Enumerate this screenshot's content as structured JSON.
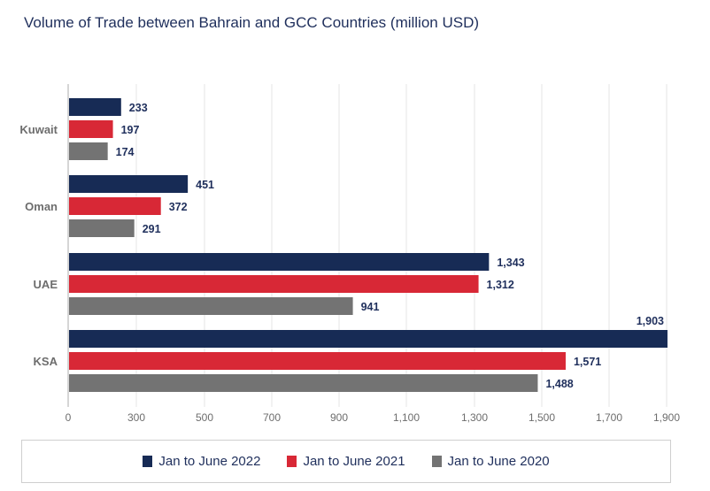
{
  "chart_data": {
    "type": "bar",
    "orientation": "horizontal",
    "title": "Volume of Trade between Bahrain and GCC Countries (million USD)",
    "categories": [
      "Kuwait",
      "Oman",
      "UAE",
      "KSA"
    ],
    "series": [
      {
        "name": "Jan to June 2022",
        "color": "#172b55",
        "values": [
          233,
          451,
          1343,
          1903
        ],
        "labels": [
          "233",
          "451",
          "1,343",
          "1,903"
        ]
      },
      {
        "name": "Jan to June 2021",
        "color": "#d82836",
        "values": [
          197,
          372,
          1312,
          1571
        ],
        "labels": [
          "197",
          "372",
          "1,312",
          "1,571"
        ]
      },
      {
        "name": "Jan to June 2020",
        "color": "#737373",
        "values": [
          174,
          291,
          941,
          1488
        ],
        "labels": [
          "174",
          "291",
          "941",
          "1,488"
        ]
      }
    ],
    "x_ticks": [
      0,
      300,
      500,
      700,
      900,
      1100,
      1300,
      1500,
      1700,
      1900
    ],
    "x_tick_labels": [
      "0",
      "300",
      "500",
      "700",
      "900",
      "1,100",
      "1,300",
      "1,500",
      "1,700",
      "1,900"
    ],
    "grid": true,
    "legend": "bottom"
  }
}
